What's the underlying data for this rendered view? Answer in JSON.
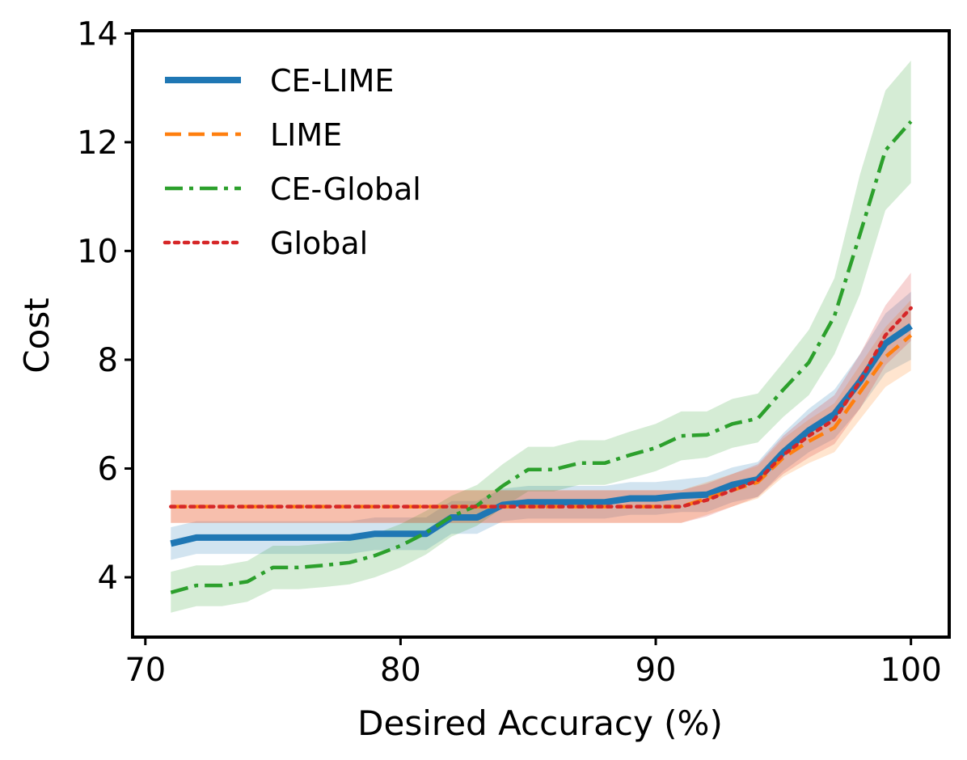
{
  "chart_data": {
    "type": "line",
    "title": "",
    "xlabel": "Desired Accuracy (%)",
    "ylabel": "Cost",
    "xlim": [
      69.5,
      101.5
    ],
    "ylim": [
      2.9,
      14.05
    ],
    "xticks": [
      70,
      80,
      90,
      100
    ],
    "yticks": [
      4,
      6,
      8,
      10,
      12,
      14
    ],
    "grid": false,
    "legend_position": "top-left",
    "series": [
      {
        "name": "CE-LIME",
        "color": "#1f77b4",
        "style": "solid",
        "x": [
          71,
          72,
          73,
          74,
          75,
          76,
          77,
          78,
          79,
          80,
          81,
          82,
          83,
          84,
          85,
          86,
          87,
          88,
          89,
          90,
          91,
          92,
          93,
          94,
          95,
          96,
          97,
          98,
          99,
          100
        ],
        "y": [
          4.62,
          4.73,
          4.73,
          4.73,
          4.73,
          4.73,
          4.73,
          4.73,
          4.8,
          4.8,
          4.8,
          5.1,
          5.1,
          5.33,
          5.38,
          5.38,
          5.38,
          5.38,
          5.45,
          5.45,
          5.5,
          5.52,
          5.7,
          5.8,
          6.3,
          6.7,
          7.0,
          7.6,
          8.3,
          8.62
        ],
        "lower": [
          4.32,
          4.43,
          4.43,
          4.43,
          4.43,
          4.43,
          4.43,
          4.43,
          4.5,
          4.5,
          4.5,
          4.8,
          4.8,
          5.03,
          5.08,
          5.08,
          5.08,
          5.08,
          5.15,
          5.15,
          5.2,
          5.2,
          5.38,
          5.48,
          5.95,
          6.3,
          6.55,
          7.1,
          7.75,
          8.0
        ],
        "upper": [
          4.92,
          5.03,
          5.03,
          5.03,
          5.03,
          5.03,
          5.03,
          5.03,
          5.1,
          5.1,
          5.1,
          5.4,
          5.4,
          5.63,
          5.68,
          5.68,
          5.68,
          5.68,
          5.75,
          5.75,
          5.8,
          5.85,
          6.02,
          6.12,
          6.65,
          7.1,
          7.45,
          8.1,
          8.85,
          9.25
        ]
      },
      {
        "name": "LIME",
        "color": "#ff7f0e",
        "style": "dashed",
        "x": [
          71,
          72,
          73,
          74,
          75,
          76,
          77,
          78,
          79,
          80,
          81,
          82,
          83,
          84,
          85,
          86,
          87,
          88,
          89,
          90,
          91,
          92,
          93,
          94,
          95,
          96,
          97,
          98,
          99,
          100
        ],
        "y": [
          5.3,
          5.3,
          5.3,
          5.3,
          5.3,
          5.3,
          5.3,
          5.3,
          5.3,
          5.3,
          5.3,
          5.3,
          5.3,
          5.3,
          5.3,
          5.3,
          5.3,
          5.3,
          5.3,
          5.3,
          5.3,
          5.45,
          5.6,
          5.75,
          6.2,
          6.5,
          6.75,
          7.4,
          8.05,
          8.45
        ],
        "lower": [
          5.0,
          5.0,
          5.0,
          5.0,
          5.0,
          5.0,
          5.0,
          5.0,
          5.0,
          5.0,
          5.0,
          5.0,
          5.0,
          5.0,
          5.0,
          5.0,
          5.0,
          5.0,
          5.0,
          5.0,
          5.0,
          5.15,
          5.3,
          5.45,
          5.85,
          6.1,
          6.3,
          6.9,
          7.5,
          7.8
        ],
        "upper": [
          5.6,
          5.6,
          5.6,
          5.6,
          5.6,
          5.6,
          5.6,
          5.6,
          5.6,
          5.6,
          5.6,
          5.6,
          5.6,
          5.6,
          5.6,
          5.6,
          5.6,
          5.6,
          5.6,
          5.6,
          5.6,
          5.75,
          5.9,
          6.05,
          6.55,
          6.9,
          7.2,
          7.9,
          8.6,
          9.1
        ]
      },
      {
        "name": "CE-Global",
        "color": "#2ca02c",
        "style": "dashdot",
        "x": [
          71,
          72,
          73,
          74,
          75,
          76,
          77,
          78,
          79,
          80,
          81,
          82,
          83,
          84,
          85,
          86,
          87,
          88,
          89,
          90,
          91,
          92,
          93,
          94,
          95,
          96,
          97,
          98,
          99,
          100
        ],
        "y": [
          3.72,
          3.85,
          3.85,
          3.92,
          4.18,
          4.18,
          4.22,
          4.27,
          4.4,
          4.58,
          4.82,
          5.12,
          5.32,
          5.68,
          5.98,
          5.98,
          6.1,
          6.1,
          6.25,
          6.38,
          6.6,
          6.62,
          6.82,
          6.92,
          7.45,
          7.95,
          8.8,
          10.3,
          11.85,
          12.38
        ],
        "lower": [
          3.35,
          3.47,
          3.47,
          3.55,
          3.78,
          3.78,
          3.82,
          3.87,
          4.0,
          4.18,
          4.42,
          4.75,
          4.95,
          5.28,
          5.58,
          5.58,
          5.7,
          5.7,
          5.82,
          5.95,
          6.15,
          6.2,
          6.38,
          6.48,
          6.95,
          7.35,
          8.1,
          9.2,
          10.75,
          11.25
        ],
        "upper": [
          4.1,
          4.22,
          4.22,
          4.3,
          4.58,
          4.58,
          4.62,
          4.67,
          4.8,
          4.98,
          5.22,
          5.5,
          5.7,
          6.08,
          6.4,
          6.4,
          6.52,
          6.52,
          6.68,
          6.82,
          7.05,
          7.05,
          7.28,
          7.38,
          7.95,
          8.55,
          9.5,
          11.4,
          12.95,
          13.5
        ]
      },
      {
        "name": "Global",
        "color": "#d62728",
        "style": "dotted",
        "x": [
          71,
          72,
          73,
          74,
          75,
          76,
          77,
          78,
          79,
          80,
          81,
          82,
          83,
          84,
          85,
          86,
          87,
          88,
          89,
          90,
          91,
          92,
          93,
          94,
          95,
          96,
          97,
          98,
          99,
          100
        ],
        "y": [
          5.3,
          5.3,
          5.3,
          5.3,
          5.3,
          5.3,
          5.3,
          5.3,
          5.3,
          5.3,
          5.3,
          5.3,
          5.3,
          5.3,
          5.3,
          5.3,
          5.3,
          5.3,
          5.3,
          5.3,
          5.3,
          5.42,
          5.6,
          5.78,
          6.25,
          6.6,
          6.9,
          7.6,
          8.45,
          8.95
        ],
        "lower": [
          5.0,
          5.0,
          5.0,
          5.0,
          5.0,
          5.0,
          5.0,
          5.0,
          5.0,
          5.0,
          5.0,
          5.0,
          5.0,
          5.0,
          5.0,
          5.0,
          5.0,
          5.0,
          5.0,
          5.0,
          5.0,
          5.12,
          5.3,
          5.48,
          5.9,
          6.2,
          6.45,
          7.1,
          7.9,
          8.35
        ],
        "upper": [
          5.6,
          5.6,
          5.6,
          5.6,
          5.6,
          5.6,
          5.6,
          5.6,
          5.6,
          5.6,
          5.6,
          5.6,
          5.6,
          5.6,
          5.6,
          5.6,
          5.6,
          5.6,
          5.6,
          5.6,
          5.6,
          5.72,
          5.9,
          6.08,
          6.6,
          7.0,
          7.35,
          8.1,
          9.0,
          9.6
        ]
      }
    ]
  }
}
